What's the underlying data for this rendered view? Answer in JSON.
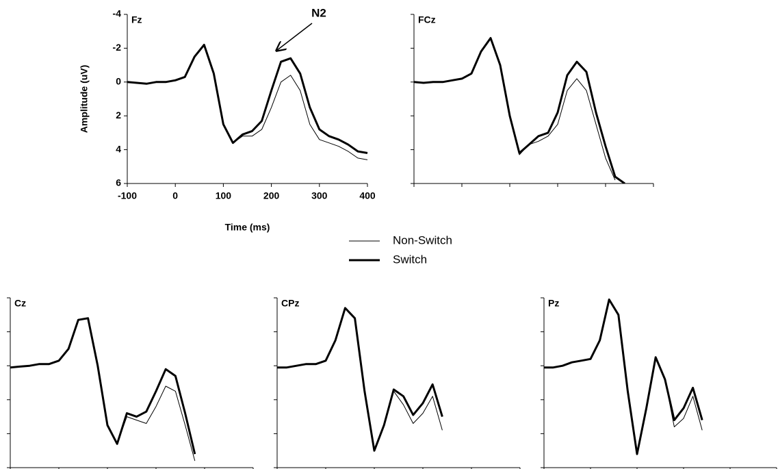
{
  "chart_data": [
    {
      "type": "line",
      "title": "Fz",
      "ylabel": "Amplitude (uV)",
      "xlabel": "Time (ms)",
      "annotation": "N2",
      "legend": "center",
      "y_inverted": true,
      "x": [
        -100,
        -80,
        -60,
        -40,
        -20,
        0,
        20,
        40,
        60,
        80,
        100,
        120,
        140,
        160,
        180,
        200,
        220,
        240,
        260,
        280,
        300,
        320,
        340,
        360,
        380,
        400
      ],
      "xlim": [
        -100,
        400
      ],
      "ylim": [
        -4,
        6
      ],
      "xticks": [
        -100,
        0,
        100,
        200,
        300,
        400
      ],
      "yticks": [
        -4,
        -2,
        0,
        2,
        4,
        6
      ],
      "series": [
        {
          "name": "Non-Switch",
          "color": "#000000",
          "line_width": 1,
          "values": [
            0,
            0.05,
            0.1,
            0,
            0,
            -0.1,
            -0.3,
            -1.5,
            -2.2,
            -0.5,
            2.5,
            3.6,
            3.2,
            3.2,
            2.8,
            1.5,
            0,
            -0.4,
            0.5,
            2.5,
            3.4,
            3.6,
            3.8,
            4.1,
            4.5,
            4.6
          ]
        },
        {
          "name": "Switch",
          "color": "#000000",
          "line_width": 3,
          "values": [
            0,
            0.05,
            0.1,
            0,
            0,
            -0.1,
            -0.3,
            -1.5,
            -2.2,
            -0.5,
            2.5,
            3.6,
            3.1,
            2.9,
            2.3,
            0.5,
            -1.2,
            -1.4,
            -0.5,
            1.5,
            2.8,
            3.2,
            3.4,
            3.7,
            4.1,
            4.2
          ]
        }
      ]
    },
    {
      "type": "line",
      "title": "FCz",
      "y_inverted": true,
      "x": [
        -100,
        -80,
        -60,
        -40,
        -20,
        0,
        20,
        40,
        60,
        80,
        100,
        120,
        140,
        160,
        180,
        200,
        220,
        240,
        260,
        280,
        300,
        320,
        340,
        360,
        380,
        400
      ],
      "xlim": [
        -100,
        400
      ],
      "ylim": [
        -4,
        6
      ],
      "series": [
        {
          "color": "#000000",
          "line_width": 1,
          "values": [
            0,
            0.05,
            0,
            0,
            -0.1,
            -0.2,
            -0.5,
            -1.8,
            -2.6,
            -1,
            2,
            4.3,
            3.7,
            3.5,
            3.2,
            2.5,
            0.5,
            -0.2,
            0.5,
            2.5,
            4.5,
            5.8,
            null,
            null,
            null,
            null
          ]
        },
        {
          "color": "#000000",
          "line_width": 3,
          "values": [
            0,
            0.05,
            0,
            0,
            -0.1,
            -0.2,
            -0.5,
            -1.8,
            -2.6,
            -1,
            2,
            4.2,
            3.7,
            3.2,
            3,
            1.8,
            -0.4,
            -1.2,
            -0.6,
            1.8,
            3.8,
            5.6,
            6,
            null,
            null,
            null
          ]
        }
      ]
    },
    {
      "type": "line",
      "title": "Cz",
      "y_inverted": true,
      "x": [
        -100,
        -80,
        -60,
        -40,
        -20,
        0,
        20,
        40,
        60,
        80,
        100,
        120,
        140,
        160,
        180,
        200,
        220,
        240,
        260,
        280,
        300,
        320,
        340,
        360,
        380,
        400
      ],
      "xlim": [
        -100,
        400
      ],
      "ylim": [
        -4,
        6
      ],
      "series": [
        {
          "color": "#000000",
          "line_width": 1,
          "values": [
            0.1,
            0.05,
            0,
            -0.1,
            -0.1,
            -0.3,
            -1,
            -2.7,
            -2.8,
            0,
            3.5,
            4.6,
            3,
            3.2,
            3.4,
            2.4,
            1.2,
            1.5,
            3.5,
            5.6,
            null,
            null,
            null,
            null,
            null,
            null
          ]
        },
        {
          "color": "#000000",
          "line_width": 3,
          "values": [
            0.1,
            0.05,
            0,
            -0.1,
            -0.1,
            -0.3,
            -1,
            -2.7,
            -2.8,
            0,
            3.5,
            4.6,
            2.8,
            3,
            2.7,
            1.5,
            0.2,
            0.6,
            2.8,
            5.2,
            null,
            null,
            null,
            null,
            null,
            null
          ]
        }
      ]
    },
    {
      "type": "line",
      "title": "CPz",
      "y_inverted": true,
      "x": [
        -100,
        -80,
        -60,
        -40,
        -20,
        0,
        20,
        40,
        60,
        80,
        100,
        120,
        140,
        160,
        180,
        200,
        220,
        240,
        260,
        280,
        300,
        320,
        340,
        360,
        380,
        400
      ],
      "xlim": [
        -100,
        400
      ],
      "ylim": [
        -4,
        6
      ],
      "series": [
        {
          "color": "#000000",
          "line_width": 1,
          "values": [
            0.1,
            0.1,
            0,
            -0.1,
            -0.1,
            -0.3,
            -1.5,
            -3.4,
            -2.8,
            1.5,
            5,
            3.5,
            1.5,
            2.3,
            3.4,
            2.8,
            1.8,
            3.8,
            null,
            null,
            null,
            null,
            null,
            null,
            null,
            null
          ]
        },
        {
          "color": "#000000",
          "line_width": 3,
          "values": [
            0.1,
            0.1,
            0,
            -0.1,
            -0.1,
            -0.3,
            -1.5,
            -3.4,
            -2.8,
            1.5,
            5,
            3.5,
            1.4,
            1.8,
            2.9,
            2.2,
            1.1,
            3,
            null,
            null,
            null,
            null,
            null,
            null,
            null,
            null
          ]
        }
      ]
    },
    {
      "type": "line",
      "title": "Pz",
      "y_inverted": true,
      "x": [
        -100,
        -80,
        -60,
        -40,
        -20,
        0,
        20,
        40,
        60,
        80,
        100,
        120,
        140,
        160,
        180,
        200,
        220,
        240,
        260,
        280,
        300,
        320,
        340,
        360,
        380,
        400
      ],
      "xlim": [
        -100,
        400
      ],
      "ylim": [
        -4,
        6
      ],
      "series": [
        {
          "color": "#000000",
          "line_width": 1,
          "values": [
            0.1,
            0.1,
            0,
            -0.2,
            -0.3,
            -0.4,
            -1.5,
            -3.9,
            -3,
            1.5,
            5.2,
            2.5,
            -0.5,
            0.8,
            3.6,
            3.1,
            1.8,
            3.8,
            null,
            null,
            null,
            null,
            null,
            null,
            null,
            null
          ]
        },
        {
          "color": "#000000",
          "line_width": 3,
          "values": [
            0.1,
            0.1,
            0,
            -0.2,
            -0.3,
            -0.4,
            -1.5,
            -3.9,
            -3,
            1.5,
            5.2,
            2.5,
            -0.5,
            0.8,
            3.2,
            2.5,
            1.3,
            3.2,
            null,
            null,
            null,
            null,
            null,
            null,
            null,
            null
          ]
        }
      ]
    }
  ]
}
